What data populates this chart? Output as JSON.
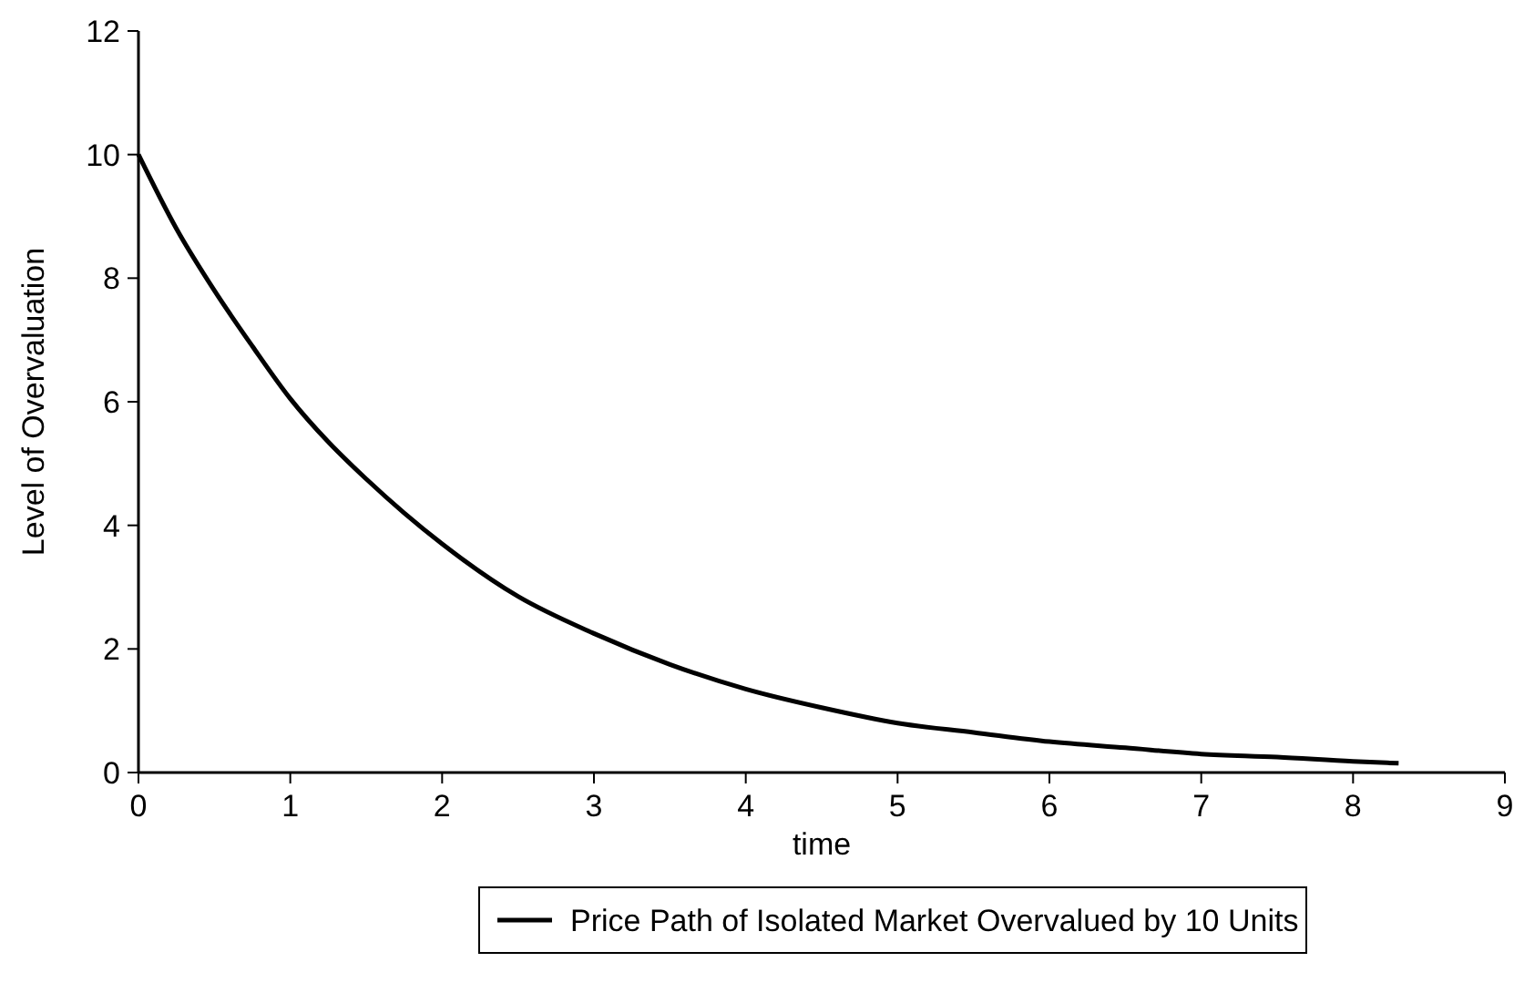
{
  "chart_data": {
    "type": "line",
    "xlabel": "time",
    "ylabel": "Level of Overvaluation",
    "x": [
      0,
      0.25,
      0.5,
      0.75,
      1,
      1.25,
      1.5,
      1.75,
      2,
      2.5,
      3,
      3.5,
      4,
      4.5,
      5,
      5.5,
      6,
      6.5,
      7,
      7.5,
      8,
      8.3
    ],
    "series": [
      {
        "name": "Price Path of Isolated Market Overvalued by 10 Units",
        "color": "#000000",
        "values": [
          10,
          8.8,
          7.8,
          6.9,
          6.05,
          5.35,
          4.75,
          4.2,
          3.7,
          2.85,
          2.25,
          1.75,
          1.35,
          1.05,
          0.8,
          0.65,
          0.5,
          0.4,
          0.3,
          0.25,
          0.18,
          0.15
        ]
      }
    ],
    "xlim": [
      0,
      9
    ],
    "xticks": [
      0,
      1,
      2,
      3,
      4,
      5,
      6,
      7,
      8,
      9
    ],
    "ylim": [
      0,
      12
    ],
    "yticks": [
      0,
      2,
      4,
      6,
      8,
      10,
      12
    ],
    "grid": false,
    "legend": "bottom",
    "marker": "none",
    "line_style": "solid"
  }
}
